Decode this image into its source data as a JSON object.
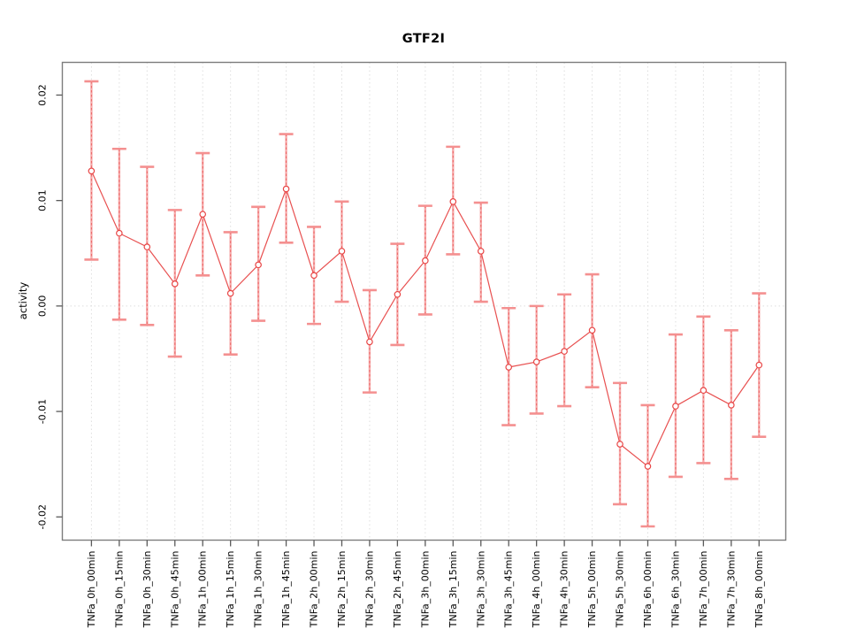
{
  "chart_data": {
    "type": "scatter",
    "subtype": "errorbar-line-plot",
    "title": "GTF2I",
    "xlabel": "",
    "ylabel": "activity",
    "legend": "none",
    "grid": {
      "vertical": "dotted line at every category",
      "horizontal": "dotted line at zero only"
    },
    "categories": [
      "TNFa_0h_00min",
      "TNFa_0h_15min",
      "TNFa_0h_30min",
      "TNFa_0h_45min",
      "TNFa_1h_00min",
      "TNFa_1h_15min",
      "TNFa_1h_30min",
      "TNFa_1h_45min",
      "TNFa_2h_00min",
      "TNFa_2h_15min",
      "TNFa_2h_30min",
      "TNFa_2h_45min",
      "TNFa_3h_00min",
      "TNFa_3h_15min",
      "TNFa_3h_30min",
      "TNFa_3h_45min",
      "TNFa_4h_00min",
      "TNFa_4h_30min",
      "TNFa_5h_00min",
      "TNFa_5h_30min",
      "TNFa_6h_00min",
      "TNFa_6h_30min",
      "TNFa_7h_00min",
      "TNFa_7h_30min",
      "TNFa_8h_00min"
    ],
    "series": [
      {
        "name": "GTF2I activity",
        "values": [
          0.0128,
          0.0069,
          0.0056,
          0.0021,
          0.0087,
          0.0012,
          0.0039,
          0.0111,
          0.0029,
          0.0052,
          -0.0034,
          0.0011,
          0.0043,
          0.0099,
          0.0052,
          -0.0058,
          -0.0053,
          -0.0043,
          -0.0023,
          -0.0131,
          -0.0152,
          -0.0095,
          -0.008,
          -0.0094,
          -0.0056
        ],
        "ci_low": [
          0.0044,
          -0.0013,
          -0.0018,
          -0.0048,
          0.0029,
          -0.0046,
          -0.0014,
          0.006,
          -0.0017,
          0.0004,
          -0.0082,
          -0.0037,
          -0.0008,
          0.0049,
          0.0004,
          -0.0113,
          -0.0102,
          -0.0095,
          -0.0077,
          -0.0188,
          -0.0209,
          -0.0162,
          -0.0149,
          -0.0164,
          -0.0124
        ],
        "ci_high": [
          0.0213,
          0.0149,
          0.0132,
          0.0091,
          0.0145,
          0.007,
          0.0094,
          0.0163,
          0.0075,
          0.0099,
          0.0015,
          0.0059,
          0.0095,
          0.0151,
          0.0098,
          -0.0002,
          0.0,
          0.0011,
          0.003,
          -0.0073,
          -0.0094,
          -0.0027,
          -0.001,
          -0.0023,
          0.0012
        ]
      }
    ],
    "ylim": [
      -0.0222,
      0.0231
    ],
    "yticks": [
      -0.02,
      -0.01,
      0.0,
      0.01,
      0.02
    ],
    "ytick_labels": [
      "-0.02",
      "-0.01",
      "0.00",
      "0.01",
      "0.02"
    ],
    "colors": {
      "point": "#e84545",
      "line": "#e85050",
      "error_bar_solid": "#f6abab",
      "error_bar_dash": "#ec6565",
      "error_bar_cap": "#f49090",
      "grid": "#dedede",
      "box": "#7d7d7d",
      "tick": "#5a5a5a",
      "text": "#000000",
      "background": "#ffffff"
    }
  }
}
